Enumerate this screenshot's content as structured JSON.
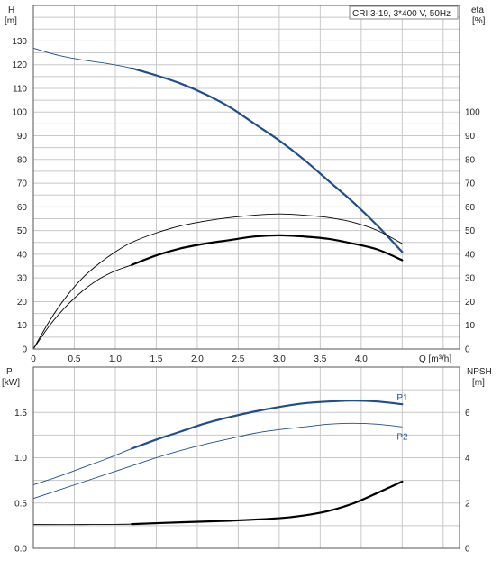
{
  "legend_box": "CRI 3-19, 3*400 V, 50Hz",
  "top": {
    "y_left_symbol": "H",
    "y_left_unit": "[m]",
    "y_right_symbol": "eta",
    "y_right_unit": "[%]",
    "x_label": "Q [m³/h]"
  },
  "bottom": {
    "y_left_symbol": "P",
    "y_left_unit": "[kW]",
    "y_right_symbol": "NPSH",
    "y_right_unit": "[m]"
  },
  "colors": {
    "blue": "#1f4e8c",
    "black": "#000000",
    "grid": "#c8c8c8",
    "frame": "#555555"
  },
  "chart_data": [
    {
      "type": "line",
      "panel": "top",
      "xlim": [
        0,
        5.2
      ],
      "ylim_left": [
        0,
        145
      ],
      "ylim_right": [
        0,
        145
      ],
      "x_ticks": [
        "0",
        "0.5",
        "1.0",
        "1.5",
        "2.0",
        "2.5",
        "3.0",
        "3.5",
        "4.0"
      ],
      "x_tick_values": [
        0,
        0.5,
        1.0,
        1.5,
        2.0,
        2.5,
        3.0,
        3.5,
        4.0
      ],
      "y_left_ticks": [
        0,
        10,
        20,
        30,
        40,
        50,
        60,
        70,
        80,
        90,
        100,
        110,
        120,
        130
      ],
      "y_right_ticks": [
        0,
        10,
        20,
        30,
        40,
        50,
        60,
        70,
        80,
        90,
        100
      ],
      "grid": true,
      "series": [
        {
          "key": "H",
          "color": "blue",
          "axis": "left",
          "x": [
            0,
            0.3,
            0.6,
            0.9,
            1.2,
            1.5,
            1.8,
            2.1,
            2.4,
            2.7,
            3.0,
            3.3,
            3.6,
            3.9,
            4.2,
            4.5
          ],
          "y": [
            127,
            124,
            122,
            120.5,
            118.5,
            115.5,
            112,
            107.5,
            102,
            95,
            88,
            80,
            71,
            62,
            52,
            41
          ],
          "bold_from": 1.2
        },
        {
          "key": "eta_upper",
          "color": "black",
          "axis": "right",
          "x": [
            0,
            0.2,
            0.4,
            0.6,
            0.8,
            1.0,
            1.2,
            1.5,
            1.8,
            2.1,
            2.4,
            2.7,
            3.0,
            3.3,
            3.6,
            3.9,
            4.2,
            4.5
          ],
          "y": [
            0,
            12,
            22,
            30,
            36,
            41,
            45,
            49,
            52,
            54,
            55.5,
            56.5,
            57,
            56.5,
            55.5,
            53.5,
            50,
            44.5
          ],
          "bold_from": 99
        },
        {
          "key": "eta_lower",
          "color": "black",
          "axis": "right",
          "x": [
            0,
            0.2,
            0.4,
            0.6,
            0.8,
            1.0,
            1.2,
            1.5,
            1.8,
            2.1,
            2.4,
            2.7,
            3.0,
            3.3,
            3.6,
            3.9,
            4.2,
            4.5
          ],
          "y": [
            0,
            10,
            18,
            24.5,
            29.5,
            33,
            35.5,
            39.5,
            42.5,
            44.5,
            46,
            47.5,
            48,
            47.5,
            46.5,
            44.5,
            42,
            37.5
          ],
          "bold_from": 1.2
        }
      ]
    },
    {
      "type": "line",
      "panel": "bottom",
      "xlim": [
        0,
        5.2
      ],
      "ylim_left": [
        0,
        2.0
      ],
      "ylim_right": [
        0,
        8.0
      ],
      "x_ticks": [],
      "y_left_ticks": [
        "0.0",
        "0.5",
        "1.0",
        "1.5"
      ],
      "y_left_tick_values": [
        0.0,
        0.5,
        1.0,
        1.5
      ],
      "y_right_ticks": [
        0,
        2,
        4,
        6
      ],
      "grid": true,
      "series": [
        {
          "name": "P1",
          "key": "P1",
          "color": "blue",
          "axis": "left",
          "x": [
            0,
            0.3,
            0.6,
            0.9,
            1.2,
            1.5,
            1.8,
            2.1,
            2.4,
            2.7,
            3.0,
            3.3,
            3.6,
            3.9,
            4.2,
            4.5
          ],
          "y": [
            0.7,
            0.79,
            0.89,
            0.99,
            1.1,
            1.2,
            1.29,
            1.38,
            1.45,
            1.51,
            1.56,
            1.6,
            1.62,
            1.63,
            1.62,
            1.59
          ],
          "bold_from": 1.2
        },
        {
          "name": "P2",
          "key": "P2",
          "color": "blue",
          "axis": "left",
          "x": [
            0,
            0.3,
            0.6,
            0.9,
            1.2,
            1.5,
            1.8,
            2.1,
            2.4,
            2.7,
            3.0,
            3.3,
            3.6,
            3.9,
            4.2,
            4.5
          ],
          "y": [
            0.55,
            0.64,
            0.73,
            0.82,
            0.91,
            1.0,
            1.08,
            1.15,
            1.21,
            1.27,
            1.31,
            1.34,
            1.37,
            1.38,
            1.37,
            1.34
          ],
          "bold_from": 99
        },
        {
          "key": "NPSH",
          "color": "black",
          "axis": "right",
          "x": [
            0,
            0.6,
            1.2,
            1.8,
            2.4,
            3.0,
            3.3,
            3.6,
            3.9,
            4.2,
            4.5
          ],
          "y": [
            1.05,
            1.05,
            1.07,
            1.15,
            1.22,
            1.33,
            1.45,
            1.65,
            1.98,
            2.45,
            2.95
          ],
          "bold_from": 1.2
        }
      ]
    }
  ]
}
